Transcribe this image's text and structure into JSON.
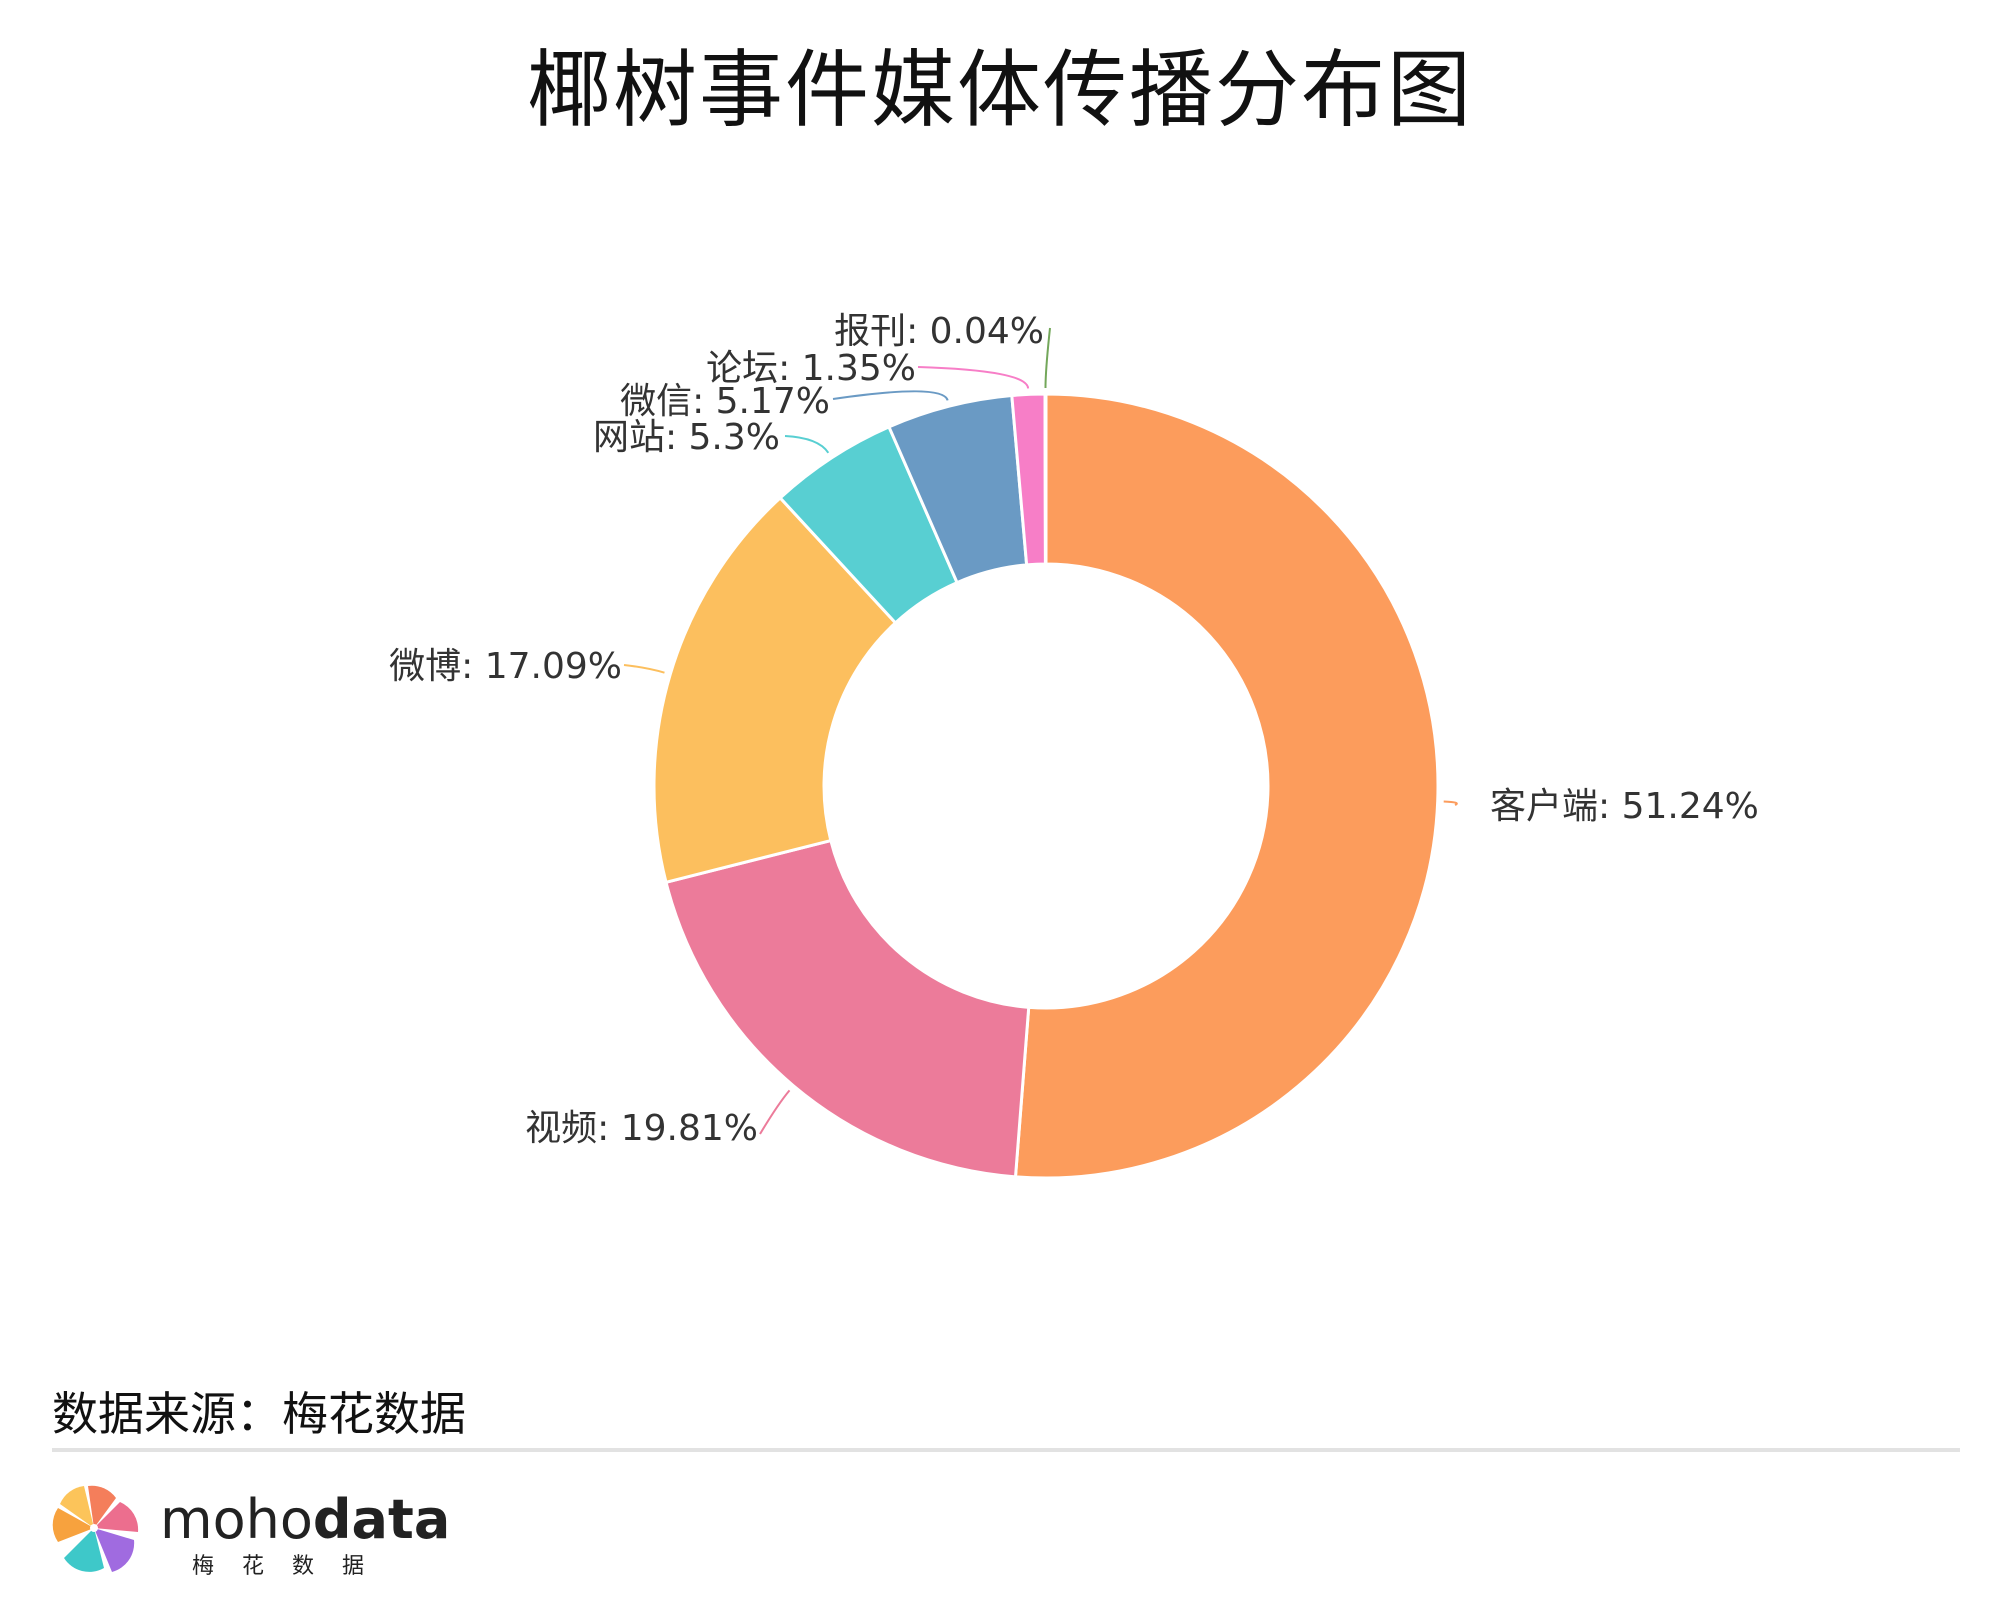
{
  "title": "椰树事件媒体传播分布图",
  "chart_data": {
    "type": "pie",
    "donut": true,
    "title": "椰树事件媒体传播分布图",
    "unit": "%",
    "slices": [
      {
        "label": "客户端",
        "value": 51.24,
        "display": "客户端: 51.24%",
        "color": "#FC9C5C"
      },
      {
        "label": "视频",
        "value": 19.81,
        "display": "视频: 19.81%",
        "color": "#EC7B9A"
      },
      {
        "label": "微博",
        "value": 17.09,
        "display": "微博: 17.09%",
        "color": "#FCBF5E"
      },
      {
        "label": "网站",
        "value": 5.3,
        "display": "网站: 5.3%",
        "color": "#58CFD2"
      },
      {
        "label": "微信",
        "value": 5.17,
        "display": "微信: 5.17%",
        "color": "#6A9AC4"
      },
      {
        "label": "论坛",
        "value": 1.35,
        "display": "论坛: 1.35%",
        "color": "#F77EC7"
      },
      {
        "label": "报刊",
        "value": 0.04,
        "display": "报刊: 0.04%",
        "color": "#73A75A"
      }
    ]
  },
  "footer": {
    "source": "数据来源：梅花数据",
    "brand_prefix": "moho",
    "brand_suffix": "data",
    "brand_sub": "梅花数据"
  }
}
